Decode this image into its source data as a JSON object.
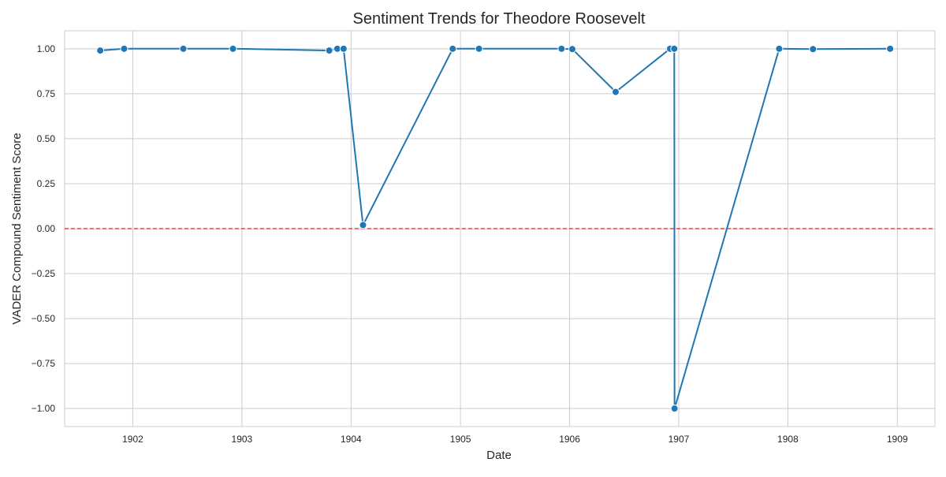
{
  "chart_data": {
    "type": "line",
    "title": "Sentiment Trends for Theodore Roosevelt",
    "xlabel": "Date",
    "ylabel": "VADER Compound Sentiment Score",
    "xlim": [
      "1901-05-18",
      "1909-05-07"
    ],
    "ylim": [
      -1.1,
      1.1
    ],
    "x_ticks": [
      "1902",
      "1903",
      "1904",
      "1905",
      "1906",
      "1907",
      "1908",
      "1909"
    ],
    "y_ticks": [
      "1.00",
      "0.75",
      "0.50",
      "0.25",
      "0.00",
      "−0.25",
      "−0.50",
      "−0.75",
      "−1.00"
    ],
    "y_tick_values": [
      1.0,
      0.75,
      0.5,
      0.25,
      0.0,
      -0.25,
      -0.5,
      -0.75,
      -1.0
    ],
    "grid": true,
    "reference_line": {
      "y": 0.0,
      "style": "dashed",
      "color": "#e02020"
    },
    "series": [
      {
        "color": "#1f77b4",
        "x": [
          "1901-09-14",
          "1901-12-03",
          "1902-06-19",
          "1902-12-02",
          "1903-10-20",
          "1903-11-16",
          "1903-12-07",
          "1904-02-10",
          "1904-12-06",
          "1905-03-04",
          "1905-12-05",
          "1906-01-10",
          "1906-06-04",
          "1906-12-03",
          "1906-12-17",
          "1906-12-18",
          "1907-12-03",
          "1908-03-25",
          "1908-12-08"
        ],
        "values": [
          0.99,
          1.0,
          1.0,
          1.0,
          0.99,
          1.0,
          1.0,
          0.02,
          1.0,
          1.0,
          1.0,
          0.998,
          0.76,
          1.0,
          1.0,
          -1.0,
          1.0,
          0.998,
          1.0
        ]
      }
    ]
  }
}
